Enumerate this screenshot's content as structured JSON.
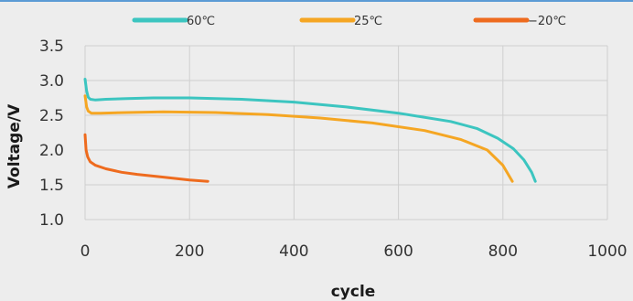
{
  "chart_data": {
    "type": "line",
    "title": "",
    "xlabel": "cycle",
    "ylabel": "Voltage/V",
    "xlim": [
      0,
      1000
    ],
    "ylim": [
      1.0,
      3.5
    ],
    "xticks": [
      "0",
      "200",
      "400",
      "600",
      "800",
      "1000"
    ],
    "yticks": [
      "1.0",
      "1.5",
      "2.0",
      "2.5",
      "3.0",
      "3.5"
    ],
    "grid": true,
    "legend_position": "top",
    "series": [
      {
        "name": "60℃",
        "color": "#3cc5c0",
        "points": [
          [
            0,
            3.02
          ],
          [
            3,
            2.85
          ],
          [
            6,
            2.76
          ],
          [
            10,
            2.73
          ],
          [
            20,
            2.72
          ],
          [
            40,
            2.73
          ],
          [
            80,
            2.74
          ],
          [
            130,
            2.75
          ],
          [
            200,
            2.75
          ],
          [
            300,
            2.73
          ],
          [
            400,
            2.69
          ],
          [
            500,
            2.62
          ],
          [
            600,
            2.53
          ],
          [
            700,
            2.41
          ],
          [
            750,
            2.31
          ],
          [
            790,
            2.17
          ],
          [
            820,
            2.02
          ],
          [
            840,
            1.86
          ],
          [
            855,
            1.68
          ],
          [
            862,
            1.55
          ]
        ]
      },
      {
        "name": "25℃",
        "color": "#f5a623",
        "points": [
          [
            0,
            2.78
          ],
          [
            3,
            2.62
          ],
          [
            6,
            2.56
          ],
          [
            12,
            2.53
          ],
          [
            30,
            2.53
          ],
          [
            80,
            2.54
          ],
          [
            150,
            2.55
          ],
          [
            250,
            2.54
          ],
          [
            350,
            2.51
          ],
          [
            450,
            2.46
          ],
          [
            550,
            2.39
          ],
          [
            650,
            2.28
          ],
          [
            720,
            2.15
          ],
          [
            770,
            2.0
          ],
          [
            800,
            1.78
          ],
          [
            818,
            1.55
          ]
        ]
      },
      {
        "name": "−20℃",
        "color": "#ee6b1e",
        "points": [
          [
            0,
            2.22
          ],
          [
            2,
            2.0
          ],
          [
            5,
            1.9
          ],
          [
            10,
            1.83
          ],
          [
            20,
            1.78
          ],
          [
            40,
            1.73
          ],
          [
            70,
            1.68
          ],
          [
            100,
            1.65
          ],
          [
            150,
            1.61
          ],
          [
            200,
            1.57
          ],
          [
            235,
            1.55
          ]
        ]
      }
    ]
  }
}
